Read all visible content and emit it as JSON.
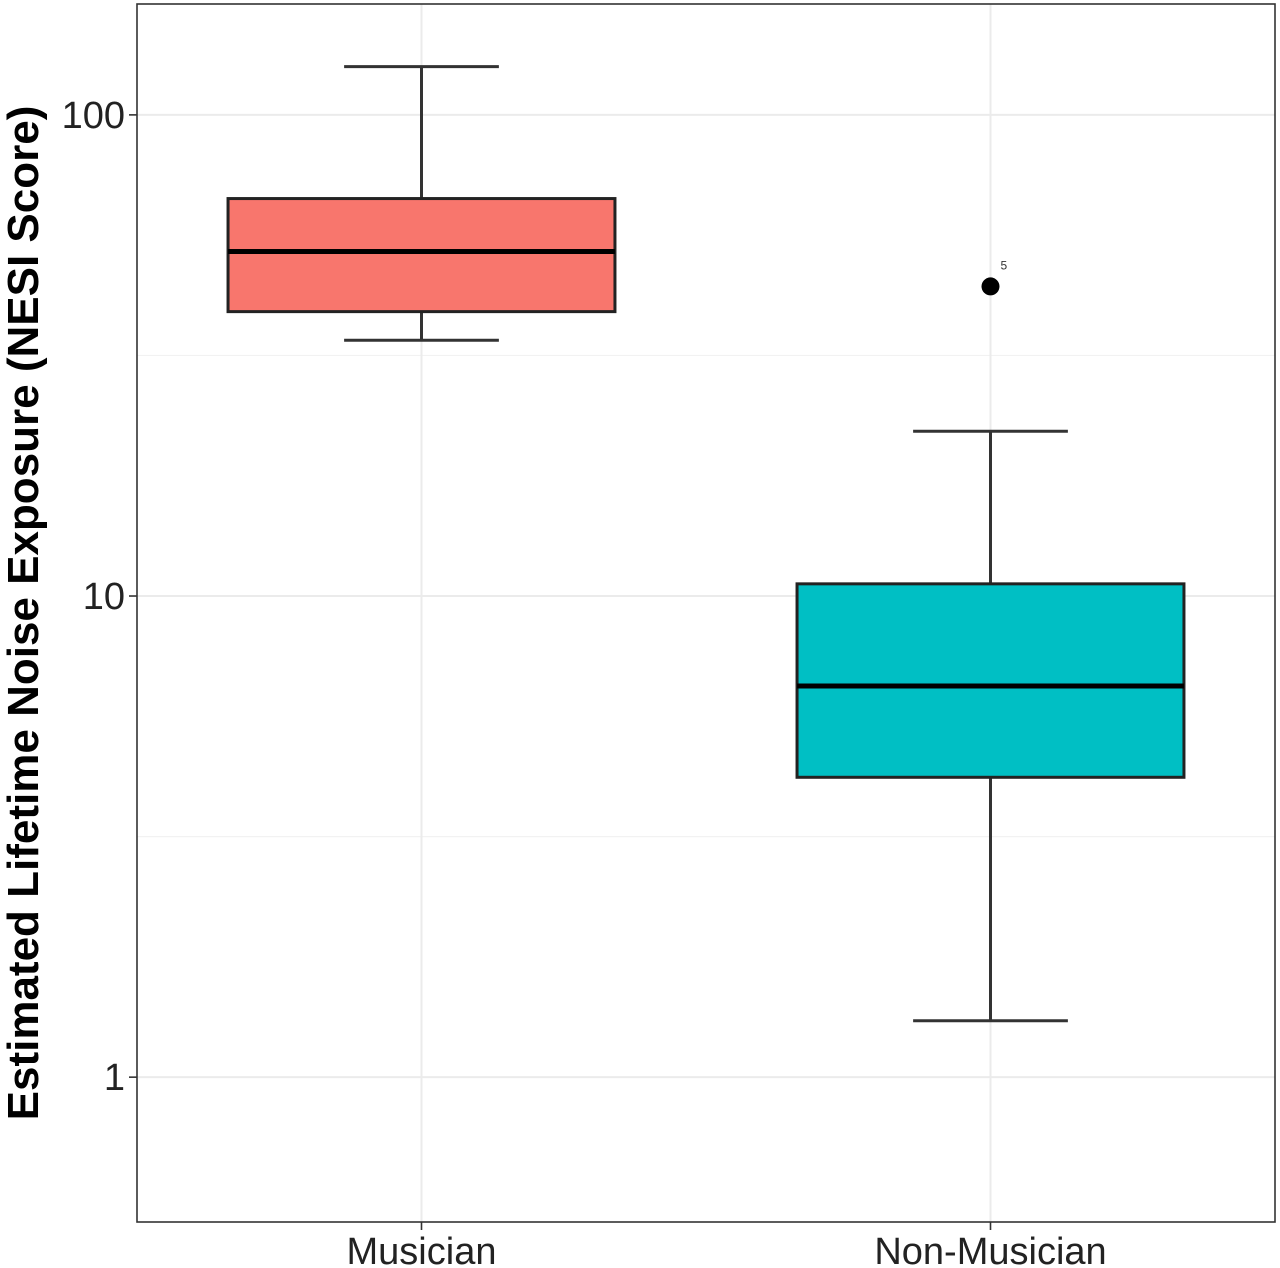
{
  "chart_data": {
    "type": "box",
    "ylabel": "Estimated Lifetime Noise Exposure (NESI Score)",
    "xlabel": "",
    "y_scale": "log10",
    "ylim": [
      0.5,
      170
    ],
    "grid": true,
    "y_ticks": [
      {
        "value": 1,
        "label": "1"
      },
      {
        "value": 10,
        "label": "10"
      },
      {
        "value": 100,
        "label": "100"
      }
    ],
    "categories": [
      "Musician",
      "Non-Musician"
    ],
    "boxes": [
      {
        "name": "Musician",
        "color": "#F8766D",
        "whisker_low": 34,
        "q1": 39,
        "median": 52,
        "q3": 67,
        "whisker_high": 126,
        "outliers": []
      },
      {
        "name": "Non-Musician",
        "color": "#00BFC4",
        "whisker_low": 1.31,
        "q1": 4.2,
        "median": 6.5,
        "q3": 10.6,
        "whisker_high": 22,
        "outliers": [
          {
            "value": 44,
            "label": "5"
          }
        ]
      }
    ]
  }
}
